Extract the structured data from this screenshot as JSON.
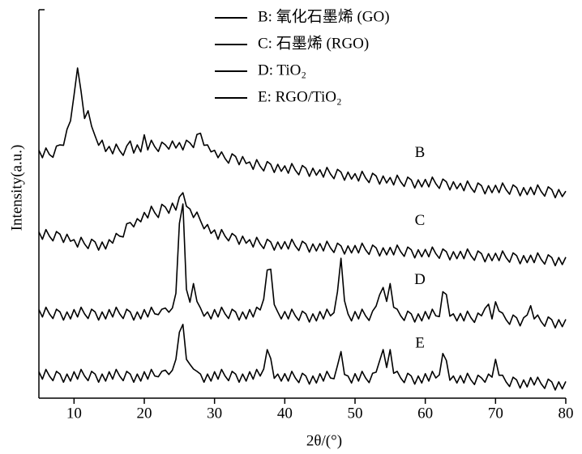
{
  "chart_data": {
    "type": "line",
    "xlabel": "2θ/(°)",
    "ylabel": "Intensity(a.u.)",
    "xlim": [
      5,
      80
    ],
    "xticks": [
      10,
      20,
      30,
      40,
      50,
      60,
      70,
      80
    ],
    "ylim": [
      0,
      100
    ],
    "legend": "top",
    "grid": false,
    "annotations": [
      "B",
      "C",
      "D",
      "E"
    ],
    "x": [
      5,
      5.5,
      6,
      6.5,
      7,
      7.5,
      8,
      8.5,
      9,
      9.5,
      10,
      10.5,
      11,
      11.5,
      12,
      12.5,
      13,
      13.5,
      14,
      14.5,
      15,
      15.5,
      16,
      16.5,
      17,
      17.5,
      18,
      18.5,
      19,
      19.5,
      20,
      20.5,
      21,
      21.5,
      22,
      22.5,
      23,
      23.5,
      24,
      24.5,
      25,
      25.5,
      26,
      26.5,
      27,
      27.5,
      28,
      28.5,
      29,
      29.5,
      30,
      30.5,
      31,
      31.5,
      32,
      32.5,
      33,
      33.5,
      34,
      34.5,
      35,
      35.5,
      36,
      36.5,
      37,
      37.5,
      38,
      38.5,
      39,
      39.5,
      40,
      40.5,
      41,
      41.5,
      42,
      42.5,
      43,
      43.5,
      44,
      44.5,
      45,
      45.5,
      46,
      46.5,
      47,
      47.5,
      48,
      48.5,
      49,
      49.5,
      50,
      50.5,
      51,
      51.5,
      52,
      52.5,
      53,
      53.5,
      54,
      54.5,
      55,
      55.5,
      56,
      56.5,
      57,
      57.5,
      58,
      58.5,
      59,
      59.5,
      60,
      60.5,
      61,
      61.5,
      62,
      62.5,
      63,
      63.5,
      64,
      64.5,
      65,
      65.5,
      66,
      66.5,
      67,
      67.5,
      68,
      68.5,
      69,
      69.5,
      70,
      70.5,
      71,
      71.5,
      72,
      72.5,
      73,
      73.5,
      74,
      74.5,
      75,
      75.5,
      76,
      76.5,
      77,
      77.5,
      78,
      78.5,
      79,
      79.5,
      80
    ],
    "series": [
      {
        "name": "B: 氧化石墨烯 (GO)",
        "color": "#000000",
        "values": [
          63.8,
          61.9,
          64.4,
          62.7,
          62,
          64.9,
          65.2,
          65.1,
          69.2,
          71.4,
          78,
          85,
          79,
          72,
          74,
          70,
          67.5,
          65.1,
          66.4,
          63.5,
          64.8,
          62.9,
          65.4,
          63.7,
          62.5,
          64.9,
          66.2,
          63.1,
          65.2,
          63.4,
          67.8,
          63.9,
          66.4,
          64.7,
          63.5,
          65.9,
          65.2,
          64.1,
          66.2,
          64.4,
          65.8,
          63.9,
          66.4,
          65.7,
          64.5,
          67.9,
          68.2,
          65.1,
          65.2,
          63.4,
          63.8,
          61.9,
          63.4,
          61.7,
          60.5,
          62.9,
          62.2,
          60.1,
          62.2,
          60.4,
          60.8,
          58.9,
          61.4,
          59.7,
          58.5,
          60.9,
          60.2,
          58.1,
          60.2,
          58.4,
          59.8,
          57.9,
          60.4,
          58.7,
          57.5,
          59.9,
          59.2,
          57.1,
          59.2,
          57.4,
          58.8,
          56.9,
          59.4,
          57.7,
          56.5,
          58.9,
          58.2,
          56.1,
          58.2,
          56.4,
          57.8,
          55.9,
          58.4,
          56.7,
          55.5,
          57.9,
          57.2,
          55.1,
          57.2,
          55.4,
          56.8,
          54.9,
          57.4,
          55.7,
          54.5,
          56.9,
          56.2,
          54.1,
          56.2,
          54.4,
          56.3,
          54.4,
          56.9,
          55.2,
          54,
          56.4,
          55.7,
          53.6,
          55.7,
          53.9,
          55.3,
          53.4,
          55.9,
          54.2,
          53,
          55.4,
          54.7,
          52.6,
          54.7,
          52.9,
          54.8,
          52.9,
          55.4,
          53.7,
          52.5,
          54.9,
          54.2,
          52.1,
          54.2,
          52.4,
          54.3,
          52.4,
          54.9,
          53.2,
          52,
          54.4,
          53.7,
          51.6,
          53.7,
          51.9,
          53.3
        ]
      },
      {
        "name": "C: 石墨烯 (RGO)",
        "color": "#000000",
        "values": [
          42.8,
          40.9,
          43.4,
          41.7,
          40.5,
          42.9,
          42.2,
          40.1,
          42.2,
          40.4,
          40.8,
          38.9,
          41.4,
          39.7,
          38.5,
          40.9,
          40.2,
          38.1,
          40.2,
          38.4,
          40.8,
          39.9,
          42.4,
          41.7,
          41.5,
          44.9,
          45.2,
          44.1,
          46.2,
          45.4,
          47.8,
          46.4,
          49.4,
          47.7,
          46.5,
          49.9,
          49.2,
          47.6,
          50.2,
          48.4,
          51.8,
          52.9,
          49.4,
          48.7,
          46.5,
          47.9,
          45.7,
          43.6,
          44.7,
          42.4,
          43.3,
          40.9,
          43.4,
          41.7,
          40.5,
          42.4,
          41.7,
          39.6,
          41.7,
          39.9,
          40.8,
          38.9,
          41.4,
          39.7,
          38.5,
          40.9,
          40.2,
          38.1,
          40.2,
          38.4,
          40.3,
          38.4,
          40.9,
          39.2,
          38,
          40.4,
          39.7,
          37.6,
          39.7,
          37.9,
          39.8,
          37.9,
          40.4,
          38.7,
          37.5,
          39.9,
          39.2,
          37.1,
          39.2,
          37.4,
          39.3,
          37.4,
          39.9,
          38.2,
          37,
          39.4,
          38.7,
          36.6,
          38.7,
          36.9,
          38.8,
          36.9,
          39.4,
          37.7,
          36.5,
          38.9,
          38.2,
          36.1,
          38.2,
          36.4,
          38.3,
          36.4,
          38.9,
          37.2,
          36,
          38.4,
          37.7,
          35.6,
          37.7,
          35.9,
          37.8,
          35.9,
          38.4,
          36.7,
          35.5,
          37.9,
          37.2,
          35.1,
          37.2,
          35.4,
          37.3,
          35.4,
          37.9,
          36.2,
          35,
          37.4,
          36.7,
          34.6,
          36.7,
          34.9,
          36.8,
          34.9,
          37.4,
          35.7,
          34.5,
          36.9,
          36.2,
          34.1,
          36.2,
          34.4,
          36.3
        ]
      },
      {
        "name": "D: TiO₂",
        "color": "#000000",
        "values": [
          22.8,
          20.9,
          23.4,
          21.7,
          20.5,
          22.9,
          22.2,
          20.1,
          22.2,
          20.4,
          22.8,
          20.9,
          23.4,
          21.7,
          20.5,
          22.9,
          22.2,
          20.1,
          22.2,
          20.4,
          22.8,
          20.9,
          23.4,
          21.7,
          20.5,
          22.9,
          22.2,
          20.1,
          22.2,
          20.4,
          22.8,
          20.9,
          23.4,
          21.7,
          21.5,
          22.9,
          23.2,
          22.1,
          23.2,
          27,
          45,
          50,
          28,
          24.7,
          29.5,
          24.9,
          23.2,
          21.1,
          22.2,
          20.4,
          22.8,
          20.9,
          23.4,
          21.7,
          20.5,
          22.9,
          22.2,
          20.1,
          22.2,
          20.4,
          22.8,
          20.9,
          23.4,
          22.7,
          25.5,
          33,
          33.2,
          24.1,
          22.2,
          20.4,
          22.3,
          20.4,
          22.9,
          21.2,
          20,
          22.4,
          21.7,
          19.6,
          21.7,
          19.9,
          22.3,
          20.4,
          22.9,
          21.2,
          22,
          27.4,
          36,
          25.1,
          21.7,
          19.9,
          22.3,
          20.4,
          22.9,
          21.2,
          20,
          22.4,
          23.7,
          26.6,
          28.5,
          24.9,
          29.5,
          23.4,
          22.9,
          21.2,
          20,
          22.4,
          21.7,
          19.6,
          21.7,
          19.9,
          22.3,
          20.4,
          22.9,
          21.2,
          21,
          27.4,
          26.7,
          21.1,
          21.7,
          19.9,
          21.8,
          19.9,
          22.4,
          20.7,
          19.5,
          21.9,
          21.2,
          23.1,
          24.2,
          20.4,
          24.8,
          22.4,
          21.9,
          20.2,
          19,
          21.4,
          20.7,
          18.6,
          20.7,
          21.4,
          23.8,
          20.4,
          21.4,
          19.7,
          18.5,
          20.9,
          20.2,
          18.1,
          20.2,
          18.4,
          20.3
        ]
      },
      {
        "name": "E: RGO/TiO₂",
        "color": "#000000",
        "values": [
          6.8,
          4.9,
          7.4,
          5.7,
          4.5,
          6.9,
          6.2,
          4.1,
          6.2,
          4.4,
          6.8,
          4.9,
          7.4,
          5.7,
          4.5,
          6.9,
          6.2,
          4.1,
          6.2,
          4.4,
          6.8,
          4.9,
          7.4,
          5.7,
          4.5,
          6.9,
          6.2,
          4.1,
          6.2,
          4.4,
          6.8,
          4.9,
          7.4,
          5.7,
          5.5,
          6.9,
          7.2,
          6.1,
          7.2,
          10,
          17,
          19,
          10,
          8.7,
          7.5,
          6.9,
          6.2,
          4.1,
          6.2,
          4.4,
          6.8,
          4.9,
          7.4,
          5.7,
          4.5,
          6.9,
          6.2,
          4.1,
          6.2,
          4.4,
          6.8,
          4.9,
          7.4,
          5.7,
          7.5,
          12.5,
          10.2,
          5.1,
          6.2,
          4.4,
          6.3,
          4.4,
          6.9,
          5.2,
          4,
          6.4,
          5.7,
          3.6,
          5.7,
          3.9,
          6.3,
          4.4,
          6.9,
          5.2,
          5,
          8.4,
          12,
          6.1,
          5.7,
          3.9,
          6.3,
          4.4,
          6.9,
          5.2,
          4,
          6.4,
          6.7,
          9.6,
          12.5,
          7.9,
          12.5,
          6.4,
          6.9,
          5.2,
          4,
          6.4,
          5.7,
          3.6,
          5.7,
          3.9,
          6.3,
          4.4,
          6.9,
          5.2,
          6,
          11.5,
          9.7,
          4.6,
          5.7,
          3.9,
          5.8,
          3.9,
          6.4,
          4.7,
          3.5,
          5.9,
          5.2,
          4.1,
          6.2,
          5.4,
          10,
          5.9,
          5.9,
          4.2,
          3,
          5.4,
          4.7,
          2.6,
          4.7,
          2.9,
          5.3,
          3.4,
          5.4,
          3.7,
          2.5,
          4.9,
          4.2,
          2.1,
          4.2,
          2.4,
          4.3
        ]
      }
    ]
  }
}
